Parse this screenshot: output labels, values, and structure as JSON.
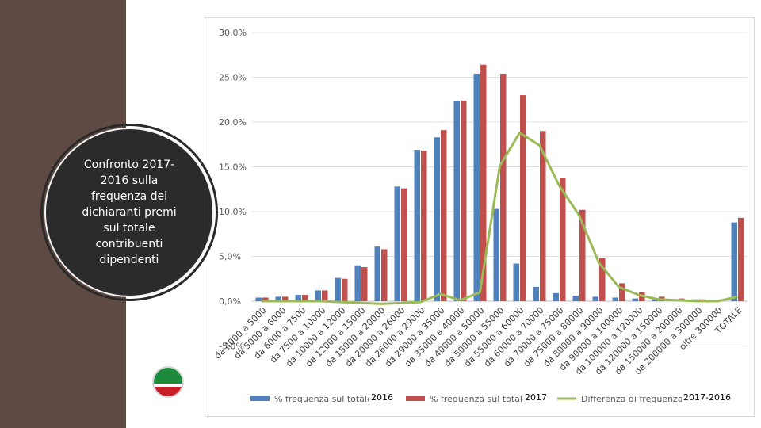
{
  "sidebar": {
    "title": "Confronto 2017-2016 sulla frequenza dei dichiaranti premi sul totale contribuenti dipendenti"
  },
  "legend_overlays": [
    "2016",
    "2017",
    "2017-2016"
  ],
  "colors": {
    "series_2016": "#4f81bd",
    "series_2017": "#c0504d",
    "difference": "#9bbb59"
  },
  "chart_data": {
    "type": "bar",
    "title": "",
    "xlabel": "",
    "ylabel": "",
    "ylim": [
      -5,
      30
    ],
    "y_ticks": [
      "30,0%",
      "25,0%",
      "20,0%",
      "15,0%",
      "10,0%",
      "5,0%",
      "0,0%",
      "-5,0%"
    ],
    "grid": true,
    "legend_position": "bottom",
    "categories": [
      "da 4000 a 5000",
      "da 5000 a 6000",
      "da 6000 a 7500",
      "da 7500 a 10000",
      "da 10000 a 12000",
      "da 12000 a 15000",
      "da 15000 a 20000",
      "da 20000 a 26000",
      "da 26000 a 29000",
      "da 29000 a 35000",
      "da 35000 a 40000",
      "da 40000 a 50000",
      "da 50000 a 55000",
      "da 55000 a 60000",
      "da 60000 a 70000",
      "da 70000 a 75000",
      "da 75000 a 80000",
      "da 80000 a 90000",
      "da 90000 a 100000",
      "da 100000 a 120000",
      "da 120000 a 150000",
      "da 150000 a 200000",
      "da 200000 a 300000",
      "oltre 300000",
      "TOTALE"
    ],
    "series": [
      {
        "name": "% frequenza sul totale",
        "type": "bar",
        "values": [
          0.4,
          0.5,
          0.7,
          1.2,
          2.6,
          4.0,
          6.1,
          12.8,
          16.9,
          18.3,
          22.3,
          25.4,
          10.3,
          4.2,
          1.6,
          0.9,
          0.6,
          0.5,
          0.4,
          0.3,
          0.3,
          0.2,
          0.2,
          0.1,
          8.8
        ]
      },
      {
        "name": "% frequenza sul totale",
        "type": "bar",
        "values": [
          0.4,
          0.5,
          0.7,
          1.2,
          2.5,
          3.8,
          5.8,
          12.6,
          16.8,
          19.1,
          22.4,
          26.4,
          25.4,
          23.0,
          19.0,
          13.8,
          10.2,
          4.8,
          2.0,
          1.0,
          0.5,
          0.3,
          0.2,
          0.1,
          9.3
        ]
      },
      {
        "name": "Differenza di frequenza",
        "type": "line",
        "values": [
          0.0,
          0.0,
          0.0,
          0.0,
          -0.1,
          -0.2,
          -0.3,
          -0.2,
          -0.1,
          0.8,
          0.1,
          1.0,
          15.1,
          18.8,
          17.4,
          12.9,
          9.6,
          4.3,
          1.6,
          0.7,
          0.2,
          0.1,
          0.0,
          0.0,
          0.5
        ]
      }
    ]
  }
}
